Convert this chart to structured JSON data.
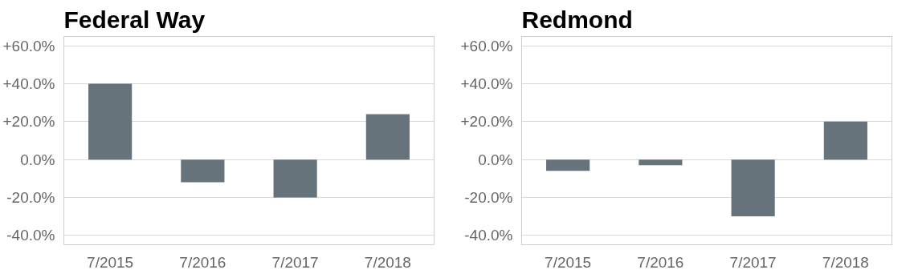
{
  "chart_data": [
    {
      "type": "bar",
      "title": "Federal Way",
      "categories": [
        "7/2015",
        "7/2016",
        "7/2017",
        "7/2018"
      ],
      "values": [
        40,
        -12,
        -20,
        24
      ],
      "color": "#66737a",
      "ylim": [
        -40,
        60
      ],
      "yticks": [
        {
          "value": -40,
          "label": "-40.0%"
        },
        {
          "value": -20,
          "label": "-20.0%"
        },
        {
          "value": 0,
          "label": "0.0%"
        },
        {
          "value": 20,
          "label": "+20.0%"
        },
        {
          "value": 40,
          "label": "+40.0%"
        },
        {
          "value": 60,
          "label": "+60.0%"
        }
      ],
      "grid": "y"
    },
    {
      "type": "bar",
      "title": "Redmond",
      "categories": [
        "7/2015",
        "7/2016",
        "7/2017",
        "7/2018"
      ],
      "values": [
        -6,
        -3,
        -30,
        20
      ],
      "color": "#66737a",
      "ylim": [
        -40,
        60
      ],
      "yticks": [
        {
          "value": -40,
          "label": "-40.0%"
        },
        {
          "value": -20,
          "label": "-20.0%"
        },
        {
          "value": 0,
          "label": "0.0%"
        },
        {
          "value": 20,
          "label": "+20.0%"
        },
        {
          "value": 40,
          "label": "+40.0%"
        },
        {
          "value": 60,
          "label": "+60.0%"
        }
      ],
      "grid": "y"
    }
  ]
}
